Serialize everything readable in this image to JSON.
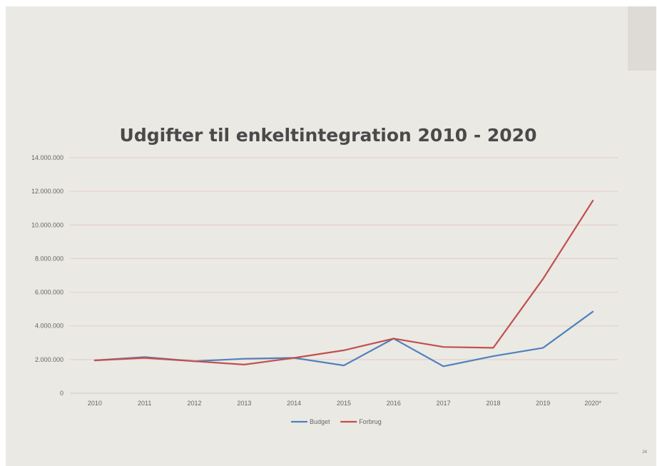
{
  "slide": {
    "page_number": "24"
  },
  "chart_data": {
    "type": "line",
    "title": "Udgifter til enkeltintegration 2010 - 2020",
    "xlabel": "",
    "ylabel": "",
    "categories": [
      "2010",
      "2011",
      "2012",
      "2013",
      "2014",
      "2015",
      "2016",
      "2017",
      "2018",
      "2019",
      "2020*"
    ],
    "ylim": [
      0,
      14000000
    ],
    "yticks": [
      0,
      2000000,
      4000000,
      6000000,
      8000000,
      10000000,
      12000000,
      14000000
    ],
    "ytick_labels": [
      "0",
      "2.000.000",
      "4.000.000",
      "6.000.000",
      "8.000.000",
      "10.000.000",
      "12.000.000",
      "14.000.000"
    ],
    "grid": true,
    "legend_position": "bottom",
    "series": [
      {
        "name": "Budget",
        "color": "#4f81bd",
        "values": [
          1950000,
          2150000,
          1900000,
          2050000,
          2100000,
          1650000,
          3250000,
          1600000,
          2200000,
          2700000,
          4850000
        ]
      },
      {
        "name": "Forbrug",
        "color": "#c0504d",
        "values": [
          1950000,
          2100000,
          1900000,
          1700000,
          2100000,
          2550000,
          3250000,
          2750000,
          2700000,
          6800000,
          11450000
        ]
      }
    ]
  }
}
